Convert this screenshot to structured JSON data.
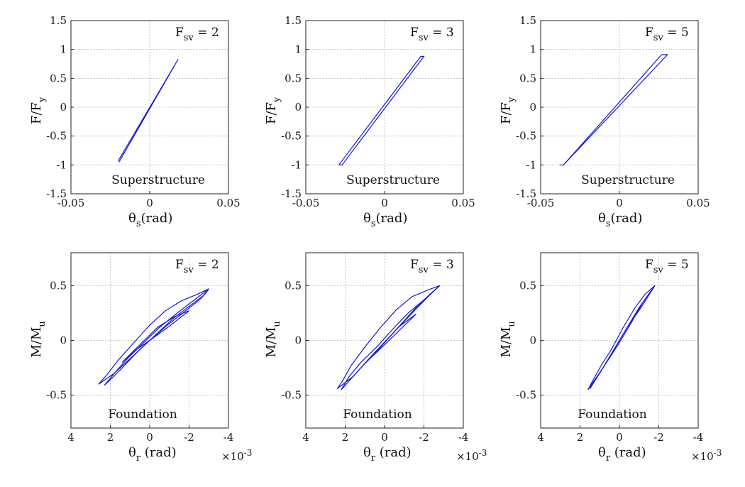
{
  "chart_data": [
    {
      "type": "line",
      "row": "top",
      "annotation": "Superstructure",
      "fsv_label": "F",
      "fsv_sub": "sv",
      "fsv_value": " = 2",
      "ylabel_main": "F/F",
      "ylabel_sub": "y",
      "xlabel_main": "θ",
      "xlabel_sub": "s",
      "xlabel_unit": "(rad)",
      "xlim": [
        -0.05,
        0.05
      ],
      "ylim": [
        -1.5,
        1.5
      ],
      "xticks": [
        -0.05,
        0,
        0.05
      ],
      "xtick_labels": [
        "-0.05",
        "0",
        "0.05"
      ],
      "yticks": [
        1.5,
        1,
        0.5,
        0,
        -0.5,
        -1,
        -1.5
      ],
      "ytick_labels": [
        "1.5",
        "1",
        "0.5",
        "0",
        "-0.5",
        "-1",
        "-1.5"
      ],
      "series": [
        {
          "x": [
            -0.02,
            0.018,
            -0.0195
          ],
          "y": [
            -0.93,
            0.83,
            -0.95
          ]
        }
      ]
    },
    {
      "type": "line",
      "row": "top",
      "annotation": "Superstructure",
      "fsv_label": "F",
      "fsv_sub": "sv",
      "fsv_value": " = 3",
      "ylabel_main": "F/F",
      "ylabel_sub": "y",
      "xlabel_main": "θ",
      "xlabel_sub": "s",
      "xlabel_unit": "(rad)",
      "xlim": [
        -0.05,
        0.05
      ],
      "ylim": [
        -1.5,
        1.5
      ],
      "xticks": [
        -0.05,
        0,
        0.05
      ],
      "xtick_labels": [
        "-0.05",
        "0",
        "0.05"
      ],
      "yticks": [
        1.5,
        1,
        0.5,
        0,
        -0.5,
        -1,
        -1.5
      ],
      "ytick_labels": [
        "1.5",
        "1",
        "0.5",
        "0",
        "-0.5",
        "-1",
        "-1.5"
      ],
      "series": [
        {
          "x": [
            -0.029,
            0.023,
            0.025,
            -0.027,
            -0.029
          ],
          "y": [
            -1.0,
            0.88,
            0.88,
            -1.0,
            -1.0
          ]
        }
      ]
    },
    {
      "type": "line",
      "row": "top",
      "annotation": "Superstructure",
      "fsv_label": "F",
      "fsv_sub": "sv",
      "fsv_value": " = 5",
      "ylabel_main": "F/F",
      "ylabel_sub": "y",
      "xlabel_main": "θ",
      "xlabel_sub": "s",
      "xlabel_unit": "(rad)",
      "xlim": [
        -0.05,
        0.05
      ],
      "ylim": [
        -1.5,
        1.5
      ],
      "xticks": [
        -0.05,
        0,
        0.05
      ],
      "xtick_labels": [
        "-0.05",
        "0",
        "0.05"
      ],
      "yticks": [
        1.5,
        1,
        0.5,
        0,
        -0.5,
        -1,
        -1.5
      ],
      "ytick_labels": [
        "1.5",
        "1",
        "0.5",
        "0",
        "-0.5",
        "-1",
        "-1.5"
      ],
      "series": [
        {
          "x": [
            -0.038,
            -0.0355,
            0.0305,
            0.0268,
            -0.0355,
            -0.038
          ],
          "y": [
            -1.0,
            -1.0,
            0.91,
            0.91,
            -1.0,
            -1.0
          ]
        }
      ]
    },
    {
      "type": "line",
      "row": "bottom",
      "annotation": "Foundation",
      "fsv_label": "F",
      "fsv_sub": "sv",
      "fsv_value": " = 2",
      "ylabel_main": "M/M",
      "ylabel_sub": "u",
      "xlabel_main": "θ",
      "xlabel_sub": "r",
      "xlabel_unit": " (rad)",
      "exponent_label": "×10",
      "exponent_power": "-3",
      "x_reversed": true,
      "xlim": [
        4,
        -4
      ],
      "ylim": [
        -0.8,
        0.8
      ],
      "xticks": [
        4,
        2,
        0,
        -2,
        -4
      ],
      "xtick_labels": [
        "4",
        "2",
        "0",
        "-2",
        "-4"
      ],
      "yticks": [
        0.5,
        0,
        -0.5
      ],
      "ytick_labels": [
        "0.5",
        "0",
        "-0.5"
      ],
      "series": [
        {
          "x": [
            2.6,
            1.8,
            0.9,
            0.0,
            -0.9,
            -1.9,
            -2.6,
            -3.0
          ],
          "y": [
            -0.4,
            -0.3,
            -0.15,
            0.0,
            0.14,
            0.28,
            0.38,
            0.47
          ]
        },
        {
          "x": [
            -3.0,
            -2.4,
            -1.6,
            -0.8,
            0.0,
            0.8,
            1.6,
            2.2,
            2.6
          ],
          "y": [
            0.47,
            0.42,
            0.36,
            0.27,
            0.14,
            -0.02,
            -0.18,
            -0.32,
            -0.4
          ]
        },
        {
          "x": [
            -3.0,
            -2.2,
            -1.4,
            -0.5,
            0.3,
            1.1,
            1.8,
            2.3
          ],
          "y": [
            0.47,
            0.36,
            0.25,
            0.12,
            -0.02,
            -0.16,
            -0.3,
            -0.41
          ]
        },
        {
          "x": [
            2.3,
            1.5,
            0.6,
            -0.3,
            -1.2,
            -2.0,
            -2.8,
            -3.0
          ],
          "y": [
            -0.41,
            -0.27,
            -0.1,
            0.05,
            0.2,
            0.31,
            0.42,
            0.47
          ]
        },
        {
          "x": [
            1.4,
            0.5,
            -0.4,
            -1.3,
            -2.0
          ],
          "y": [
            -0.2,
            -0.04,
            0.12,
            0.22,
            0.27
          ]
        },
        {
          "x": [
            -2.0,
            -1.0,
            0.0,
            0.8,
            1.4
          ],
          "y": [
            0.27,
            0.13,
            0.0,
            -0.1,
            -0.2
          ]
        }
      ]
    },
    {
      "type": "line",
      "row": "bottom",
      "annotation": "Foundation",
      "fsv_label": "F",
      "fsv_sub": "sv",
      "fsv_value": " = 3",
      "ylabel_main": "M/M",
      "ylabel_sub": "u",
      "xlabel_main": "θ",
      "xlabel_sub": "r",
      "xlabel_unit": " (rad)",
      "exponent_label": "×10",
      "exponent_power": "-3",
      "x_reversed": true,
      "xlim": [
        4,
        -4
      ],
      "ylim": [
        -0.8,
        0.8
      ],
      "xticks": [
        4,
        2,
        0,
        -2,
        -4
      ],
      "xtick_labels": [
        "4",
        "2",
        "0",
        "-2",
        "-4"
      ],
      "yticks": [
        0.5,
        0,
        -0.5
      ],
      "ytick_labels": [
        "0.5",
        "0",
        "-0.5"
      ],
      "series": [
        {
          "x": [
            2.4,
            1.6,
            0.8,
            0.0,
            -0.8,
            -1.6,
            -2.3,
            -2.8
          ],
          "y": [
            -0.44,
            -0.33,
            -0.17,
            -0.02,
            0.14,
            0.3,
            0.42,
            0.5
          ]
        },
        {
          "x": [
            -2.8,
            -2.2,
            -1.4,
            -0.6,
            0.2,
            1.0,
            1.7,
            2.1,
            2.4
          ],
          "y": [
            0.5,
            0.46,
            0.4,
            0.28,
            0.12,
            -0.06,
            -0.23,
            -0.36,
            -0.44
          ]
        },
        {
          "x": [
            -2.8,
            -2.0,
            -1.2,
            -0.4,
            0.4,
            1.2,
            1.8,
            2.2
          ],
          "y": [
            0.5,
            0.37,
            0.25,
            0.1,
            -0.06,
            -0.2,
            -0.33,
            -0.45
          ]
        },
        {
          "x": [
            2.2,
            1.4,
            0.5,
            -0.4,
            -1.3,
            -2.1,
            -2.8
          ],
          "y": [
            -0.45,
            -0.29,
            -0.11,
            0.06,
            0.23,
            0.38,
            0.5
          ]
        },
        {
          "x": [
            1.0,
            0.2,
            -0.7,
            -1.6
          ],
          "y": [
            -0.21,
            -0.06,
            0.12,
            0.24
          ]
        },
        {
          "x": [
            -1.6,
            -0.8,
            0.0,
            1.0
          ],
          "y": [
            0.24,
            0.1,
            -0.04,
            -0.21
          ]
        }
      ]
    },
    {
      "type": "line",
      "row": "bottom",
      "annotation": "Foundation",
      "fsv_label": "F",
      "fsv_sub": "sv",
      "fsv_value": " = 5",
      "ylabel_main": "M/M",
      "ylabel_sub": "u",
      "xlabel_main": "θ",
      "xlabel_sub": "r",
      "xlabel_unit": " (rad)",
      "exponent_label": "×10",
      "exponent_power": "-3",
      "x_reversed": true,
      "xlim": [
        4,
        -4
      ],
      "ylim": [
        -0.8,
        0.8
      ],
      "xticks": [
        4,
        2,
        0,
        -2,
        -4
      ],
      "xtick_labels": [
        "4",
        "2",
        "0",
        "-2",
        "-4"
      ],
      "yticks": [
        0.5,
        0,
        -0.5
      ],
      "ytick_labels": [
        "0.5",
        "0",
        "-0.5"
      ],
      "series": [
        {
          "x": [
            1.6,
            1.1,
            0.5,
            0.0,
            -0.6,
            -1.2,
            -1.8
          ],
          "y": [
            -0.45,
            -0.32,
            -0.16,
            -0.02,
            0.16,
            0.35,
            0.5
          ]
        },
        {
          "x": [
            -1.8,
            -1.3,
            -0.8,
            -0.2,
            0.4,
            0.9,
            1.3,
            1.6
          ],
          "y": [
            0.5,
            0.42,
            0.3,
            0.12,
            -0.08,
            -0.22,
            -0.35,
            -0.45
          ]
        },
        {
          "x": [
            -1.8,
            -1.1,
            -0.4,
            0.2,
            0.8,
            1.5
          ],
          "y": [
            0.5,
            0.3,
            0.12,
            -0.06,
            -0.24,
            -0.44
          ]
        },
        {
          "x": [
            1.5,
            0.9,
            0.3,
            -0.4,
            -1.0,
            -1.8
          ],
          "y": [
            -0.44,
            -0.27,
            -0.09,
            0.12,
            0.3,
            0.5
          ]
        }
      ]
    }
  ]
}
